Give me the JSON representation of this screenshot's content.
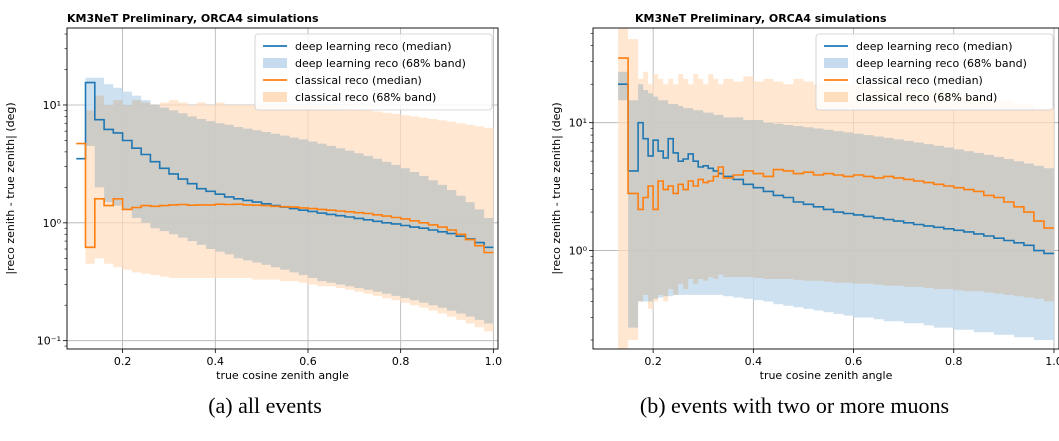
{
  "captions": [
    "(a) all events",
    "(b) events with two or more muons"
  ],
  "colors": {
    "deep": "#1f77b4",
    "deep_band": "#c6dcee",
    "classical": "#ff7f0e",
    "classical_band": "#ffddbf",
    "overlap": "#d7cfbf"
  },
  "chart_data": [
    {
      "type": "line",
      "title": "KM3NeT Preliminary, ORCA4 simulations",
      "xlabel": "true cosine zenith angle",
      "ylabel": "|reco zenith - true zenith| (deg)",
      "xlim": [
        0.08,
        1.01
      ],
      "ylim": [
        0.085,
        45
      ],
      "yscale": "log",
      "grid": true,
      "legend_placement": "top-right",
      "xticks": [
        0.2,
        0.4,
        0.6,
        0.8,
        1.0
      ],
      "xtick_labels": [
        "0.2",
        "0.4",
        "0.6",
        "0.8",
        "1.0"
      ],
      "yticks": [
        0.1,
        1,
        10
      ],
      "ytick_labels": [
        "10⁻¹",
        "10⁰",
        "10¹"
      ],
      "legend": [
        "deep learning reco (median)",
        "deep learning reco (68% band)",
        "classical reco (median)",
        "classical reco (68% band)"
      ],
      "bin_edges": [
        0.1,
        0.12,
        0.14,
        0.16,
        0.18,
        0.2,
        0.22,
        0.24,
        0.26,
        0.28,
        0.3,
        0.32,
        0.34,
        0.36,
        0.38,
        0.4,
        0.42,
        0.44,
        0.46,
        0.48,
        0.5,
        0.52,
        0.54,
        0.56,
        0.58,
        0.6,
        0.62,
        0.64,
        0.66,
        0.68,
        0.7,
        0.72,
        0.74,
        0.76,
        0.78,
        0.8,
        0.82,
        0.84,
        0.86,
        0.88,
        0.9,
        0.92,
        0.94,
        0.96,
        0.98,
        1.0
      ],
      "series": [
        {
          "name": "deep learning reco (median)",
          "kind": "step",
          "values": [
            3.5,
            15.5,
            7.5,
            6.2,
            5.8,
            5.0,
            4.3,
            3.8,
            3.3,
            2.9,
            2.6,
            2.35,
            2.15,
            1.95,
            1.85,
            1.75,
            1.66,
            1.6,
            1.55,
            1.5,
            1.45,
            1.4,
            1.36,
            1.32,
            1.28,
            1.25,
            1.21,
            1.18,
            1.15,
            1.12,
            1.09,
            1.06,
            1.03,
            1.0,
            0.98,
            0.95,
            0.92,
            0.9,
            0.87,
            0.84,
            0.81,
            0.77,
            0.73,
            0.68,
            0.62
          ]
        },
        {
          "name": "deep learning reco (68% band)",
          "kind": "band",
          "low": [
            3.5,
            4.5,
            2.0,
            1.5,
            1.4,
            1.3,
            1.1,
            1.0,
            0.9,
            0.85,
            0.8,
            0.75,
            0.7,
            0.65,
            0.6,
            0.57,
            0.54,
            0.5,
            0.48,
            0.46,
            0.44,
            0.42,
            0.4,
            0.38,
            0.36,
            0.34,
            0.32,
            0.31,
            0.3,
            0.29,
            0.28,
            0.27,
            0.26,
            0.25,
            0.24,
            0.23,
            0.22,
            0.21,
            0.2,
            0.19,
            0.18,
            0.17,
            0.16,
            0.15,
            0.14
          ],
          "high": [
            3.5,
            17.0,
            17.0,
            15.0,
            14.0,
            13.0,
            12.0,
            11.0,
            10.0,
            9.5,
            9.0,
            8.5,
            8.0,
            7.6,
            7.3,
            7.0,
            6.8,
            6.5,
            6.3,
            6.1,
            5.9,
            5.7,
            5.5,
            5.3,
            5.1,
            4.9,
            4.7,
            4.5,
            4.3,
            4.1,
            3.9,
            3.7,
            3.5,
            3.3,
            3.1,
            2.9,
            2.7,
            2.5,
            2.3,
            2.1,
            1.9,
            1.7,
            1.5,
            1.3,
            1.1
          ]
        },
        {
          "name": "classical reco (median)",
          "kind": "step",
          "values": [
            4.7,
            0.62,
            1.6,
            1.4,
            1.6,
            1.3,
            1.35,
            1.4,
            1.38,
            1.4,
            1.42,
            1.43,
            1.41,
            1.42,
            1.42,
            1.44,
            1.43,
            1.44,
            1.42,
            1.41,
            1.4,
            1.38,
            1.37,
            1.36,
            1.34,
            1.32,
            1.3,
            1.28,
            1.26,
            1.24,
            1.22,
            1.2,
            1.17,
            1.14,
            1.11,
            1.08,
            1.04,
            1.0,
            0.96,
            0.92,
            0.87,
            0.8,
            0.72,
            0.64,
            0.56
          ]
        },
        {
          "name": "classical reco (68% band)",
          "kind": "band",
          "low": [
            4.7,
            0.45,
            0.5,
            0.45,
            0.42,
            0.4,
            0.38,
            0.37,
            0.36,
            0.35,
            0.34,
            0.34,
            0.34,
            0.34,
            0.34,
            0.34,
            0.34,
            0.34,
            0.34,
            0.33,
            0.33,
            0.33,
            0.32,
            0.32,
            0.31,
            0.3,
            0.29,
            0.29,
            0.28,
            0.27,
            0.26,
            0.25,
            0.24,
            0.23,
            0.22,
            0.21,
            0.2,
            0.19,
            0.18,
            0.17,
            0.16,
            0.15,
            0.14,
            0.13,
            0.12
          ],
          "high": [
            4.7,
            9.0,
            12.0,
            10.0,
            11.0,
            10.0,
            11.0,
            10.5,
            10.0,
            10.5,
            11.0,
            10.5,
            10.0,
            10.5,
            10.0,
            10.5,
            10.0,
            10.0,
            10.0,
            10.0,
            10.0,
            10.0,
            10.0,
            10.0,
            10.0,
            10.0,
            10.0,
            9.8,
            9.6,
            9.4,
            9.2,
            9.0,
            8.8,
            8.6,
            8.4,
            8.2,
            8.0,
            7.8,
            7.6,
            7.4,
            7.2,
            7.0,
            6.8,
            6.6,
            6.4
          ]
        }
      ]
    },
    {
      "type": "line",
      "title": "KM3NeT Preliminary, ORCA4 simulations",
      "xlabel": "true cosine zenith angle",
      "ylabel": "|reco zenith - true zenith| (deg)",
      "xlim": [
        0.08,
        1.01
      ],
      "ylim": [
        0.17,
        55
      ],
      "yscale": "log",
      "grid": true,
      "legend_placement": "top-right",
      "xticks": [
        0.2,
        0.4,
        0.6,
        0.8,
        1.0
      ],
      "xtick_labels": [
        "0.2",
        "0.4",
        "0.6",
        "0.8",
        "1.0"
      ],
      "yticks": [
        1,
        10
      ],
      "ytick_labels": [
        "10⁰",
        "10¹"
      ],
      "legend": [
        "deep learning reco (median)",
        "deep learning reco (68% band)",
        "classical reco (median)",
        "classical reco (68% band)"
      ],
      "bin_edges": [
        0.13,
        0.15,
        0.17,
        0.18,
        0.19,
        0.2,
        0.21,
        0.22,
        0.23,
        0.24,
        0.25,
        0.26,
        0.27,
        0.28,
        0.29,
        0.3,
        0.31,
        0.32,
        0.33,
        0.34,
        0.36,
        0.38,
        0.4,
        0.42,
        0.44,
        0.46,
        0.48,
        0.5,
        0.52,
        0.54,
        0.56,
        0.58,
        0.6,
        0.62,
        0.64,
        0.66,
        0.68,
        0.7,
        0.72,
        0.74,
        0.76,
        0.78,
        0.8,
        0.82,
        0.84,
        0.86,
        0.88,
        0.9,
        0.92,
        0.94,
        0.96,
        0.98,
        1.0
      ],
      "series": [
        {
          "name": "deep learning reco (median)",
          "kind": "step",
          "values": [
            20,
            4.2,
            10,
            7.5,
            5.5,
            7.3,
            6.0,
            5.3,
            7.5,
            5.8,
            5.0,
            5.2,
            5.7,
            5.0,
            4.5,
            4.6,
            4.4,
            4.2,
            4.0,
            3.8,
            3.6,
            3.3,
            3.1,
            2.9,
            2.7,
            2.6,
            2.4,
            2.3,
            2.2,
            2.1,
            2.0,
            1.95,
            1.9,
            1.85,
            1.8,
            1.75,
            1.7,
            1.65,
            1.6,
            1.56,
            1.52,
            1.48,
            1.44,
            1.4,
            1.35,
            1.3,
            1.25,
            1.2,
            1.15,
            1.1,
            1.0,
            0.95
          ]
        },
        {
          "name": "deep learning reco (68% band)",
          "kind": "band",
          "low": [
            15,
            0.25,
            0.4,
            0.4,
            0.4,
            0.42,
            0.43,
            0.44,
            0.44,
            0.45,
            0.45,
            0.45,
            0.45,
            0.45,
            0.45,
            0.45,
            0.45,
            0.45,
            0.45,
            0.44,
            0.43,
            0.42,
            0.41,
            0.4,
            0.38,
            0.37,
            0.36,
            0.35,
            0.34,
            0.33,
            0.32,
            0.31,
            0.3,
            0.3,
            0.29,
            0.28,
            0.28,
            0.27,
            0.27,
            0.26,
            0.25,
            0.25,
            0.24,
            0.24,
            0.23,
            0.23,
            0.22,
            0.22,
            0.21,
            0.21,
            0.2,
            0.2
          ],
          "high": [
            25,
            15,
            20,
            18,
            17,
            16,
            15,
            15,
            14,
            14,
            13.5,
            13,
            13,
            12.5,
            12.5,
            12,
            12,
            11.5,
            11.5,
            11,
            11,
            10.5,
            10.5,
            10,
            9.8,
            9.6,
            9.4,
            9.2,
            9.0,
            8.8,
            8.6,
            8.4,
            8.2,
            8.0,
            7.8,
            7.6,
            7.4,
            7.2,
            7.0,
            6.8,
            6.6,
            6.4,
            6.2,
            6.0,
            5.8,
            5.6,
            5.4,
            5.2,
            5.0,
            4.8,
            4.6,
            4.4
          ]
        },
        {
          "name": "classical reco (median)",
          "kind": "step",
          "values": [
            32,
            2.8,
            2.1,
            2.6,
            3.2,
            2.1,
            3.5,
            3.0,
            3.2,
            2.8,
            3.3,
            3.0,
            3.5,
            3.2,
            3.6,
            3.4,
            3.5,
            3.8,
            4.5,
            3.7,
            3.9,
            4.2,
            4.0,
            3.8,
            4.3,
            4.2,
            4.0,
            4.1,
            3.9,
            4.0,
            3.9,
            3.8,
            3.9,
            3.8,
            3.7,
            3.8,
            3.7,
            3.6,
            3.5,
            3.4,
            3.3,
            3.2,
            3.1,
            3.0,
            2.9,
            2.7,
            2.6,
            2.4,
            2.2,
            2.0,
            1.7,
            1.5
          ]
        },
        {
          "name": "classical reco (68% band)",
          "kind": "band",
          "low": [
            0.17,
            0.2,
            0.4,
            0.45,
            0.35,
            0.4,
            0.45,
            0.4,
            0.5,
            0.45,
            0.55,
            0.5,
            0.6,
            0.55,
            0.6,
            0.58,
            0.62,
            0.6,
            0.65,
            0.62,
            0.62,
            0.62,
            0.61,
            0.6,
            0.6,
            0.6,
            0.59,
            0.58,
            0.58,
            0.57,
            0.56,
            0.56,
            0.55,
            0.55,
            0.54,
            0.53,
            0.53,
            0.52,
            0.52,
            0.51,
            0.5,
            0.5,
            0.49,
            0.48,
            0.48,
            0.47,
            0.46,
            0.45,
            0.44,
            0.43,
            0.42,
            0.4
          ],
          "high": [
            55,
            45,
            22,
            25,
            20,
            24,
            22,
            20,
            22,
            20,
            24,
            22,
            20,
            24,
            22,
            20,
            24,
            22,
            20,
            22,
            21,
            23,
            21,
            22,
            21,
            20,
            22,
            21,
            20,
            21,
            20,
            20,
            21,
            20,
            19,
            20,
            19,
            19,
            18,
            18,
            18,
            17,
            17,
            16,
            16,
            15,
            15,
            15,
            14,
            14,
            13,
            13
          ]
        }
      ]
    }
  ]
}
